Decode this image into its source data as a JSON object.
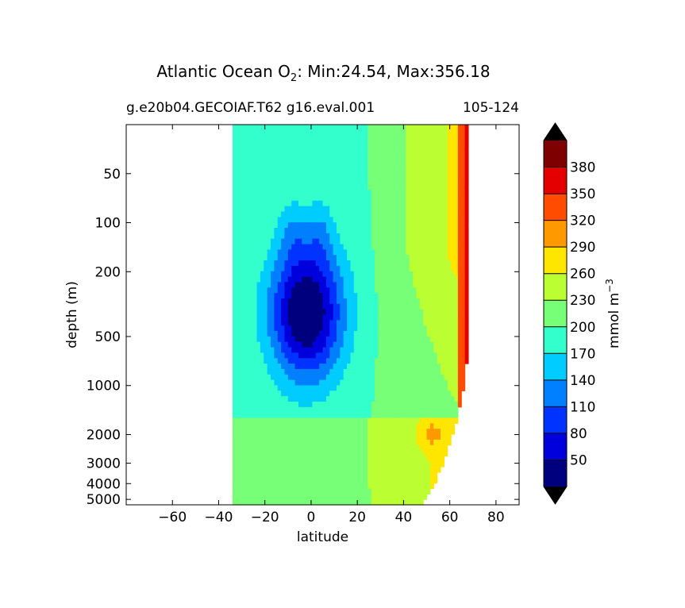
{
  "header": {
    "title_main": "Atlantic Ocean O",
    "title_sub": "2",
    "title_rest": ": Min:24.54, Max:356.18",
    "subtitle_left": "g.e20b04.GECOIAF.T62 g16.eval.001",
    "subtitle_right": "105-124"
  },
  "chart_data": {
    "type": "heatmap",
    "subtype": "filled-contour",
    "xlabel": "latitude",
    "ylabel": "depth (m)",
    "xlim": [
      -80,
      90
    ],
    "ylim": [
      5400,
      25
    ],
    "y_scale": "log",
    "x_ticks": [
      -60,
      -40,
      -20,
      0,
      20,
      40,
      60,
      80
    ],
    "x_tick_labels": [
      "−60",
      "−40",
      "−20",
      "0",
      "20",
      "40",
      "60",
      "80"
    ],
    "y_ticks": [
      50,
      100,
      200,
      500,
      1000,
      2000,
      3000,
      4000,
      5000
    ],
    "y_tick_labels": [
      "50",
      "100",
      "200",
      "500",
      "1000",
      "2000",
      "3000",
      "4000",
      "5000"
    ],
    "data_extent_lat": [
      -34,
      68
    ],
    "colorbar": {
      "label": "mmol m",
      "label_exp": "−3",
      "levels": [
        20,
        50,
        80,
        110,
        140,
        170,
        200,
        230,
        260,
        290,
        320,
        350,
        380,
        410
      ],
      "tick_labels": [
        "50",
        "80",
        "110",
        "140",
        "170",
        "200",
        "230",
        "260",
        "290",
        "320",
        "350",
        "380"
      ],
      "colors": [
        "#00007f",
        "#0000dd",
        "#0033ff",
        "#007fff",
        "#00ccff",
        "#33ffcc",
        "#77ff77",
        "#bbff33",
        "#ffe600",
        "#ff9900",
        "#ff4c00",
        "#e50000",
        "#7f0000"
      ],
      "extend": "both",
      "under_color": "#000000",
      "over_color": "#000000"
    },
    "grid": false
  }
}
